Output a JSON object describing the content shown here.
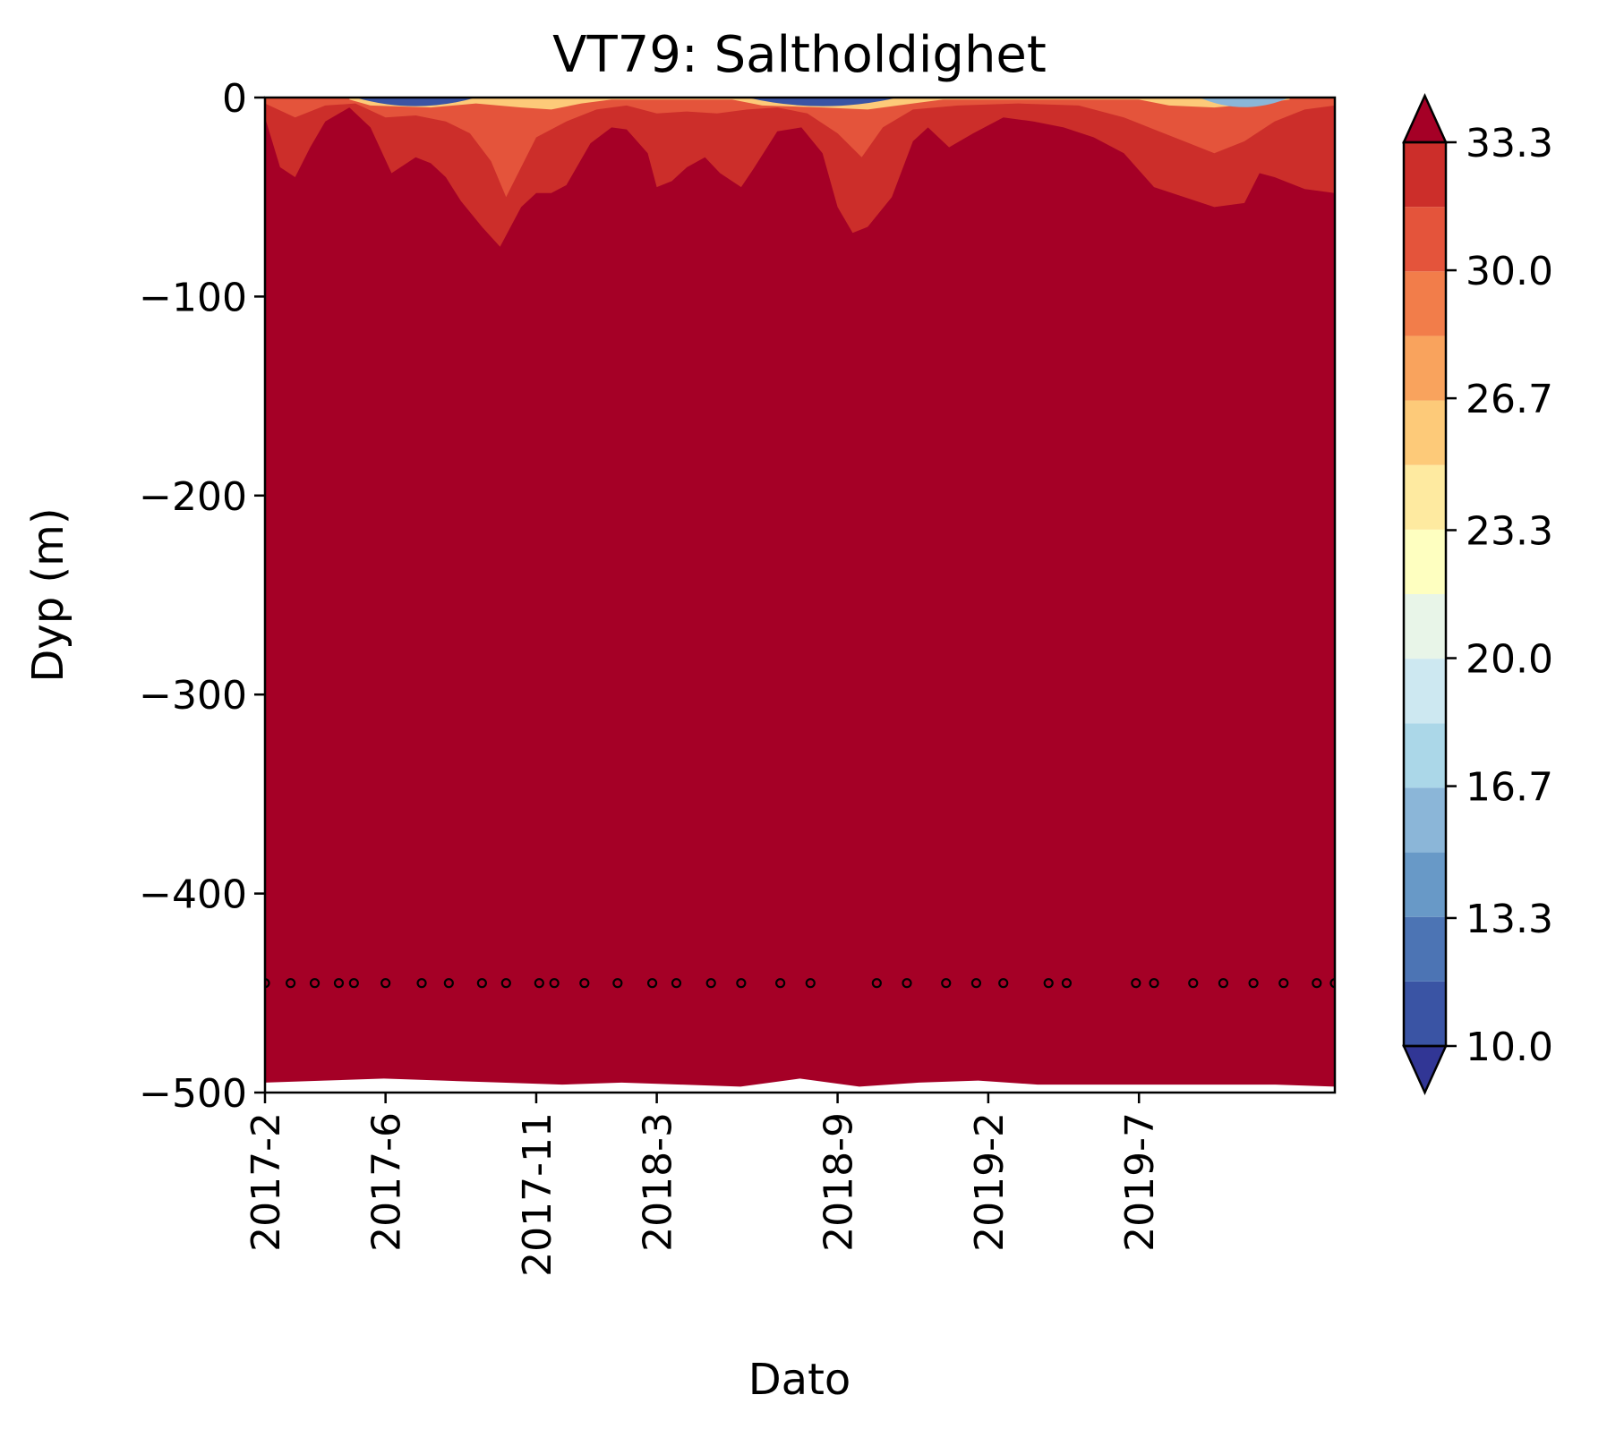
{
  "chart_data": {
    "type": "heatmap",
    "subtype": "filled-contour depth-time section",
    "title": "VT79: Saltholdighet",
    "xlabel": "Dato",
    "ylabel": "Dyp (m)",
    "x_tick_labels": [
      "2017-2",
      "2017-6",
      "2017-11",
      "2018-3",
      "2018-9",
      "2019-2",
      "2019-7"
    ],
    "x_tick_values_months": [
      0,
      4,
      9,
      13,
      19,
      24,
      29
    ],
    "x_range_months": [
      0,
      35.5
    ],
    "y_ticks": [
      0,
      -100,
      -200,
      -300,
      -400,
      -500
    ],
    "y_tick_labels": [
      "0",
      "−100",
      "−200",
      "−300",
      "−400",
      "−500"
    ],
    "ylim": [
      -500,
      0
    ],
    "colorbar": {
      "min": 10.0,
      "max": 33.3,
      "levels": 15,
      "tick_labels": [
        "10.0",
        "13.3",
        "16.7",
        "20.0",
        "23.3",
        "26.7",
        "30.0",
        "33.3"
      ],
      "tick_values": [
        10.0,
        13.3,
        16.7,
        20.0,
        23.3,
        26.7,
        30.0,
        33.3
      ],
      "extend": "both",
      "colors": [
        "#313695",
        "#3a54a4",
        "#4c74b4",
        "#6899c7",
        "#8bb6d8",
        "#abd7e8",
        "#cde8f1",
        "#e8f5e8",
        "#feffc0",
        "#feeaa0",
        "#fdca79",
        "#f9a35d",
        "#f27d4a",
        "#e4543b",
        "#cc2e2a",
        "#a50026"
      ]
    },
    "bottom_depth_m": [
      -495,
      -494,
      -493,
      -494,
      -495,
      -496,
      -495,
      -496,
      -497,
      -493,
      -497,
      -495,
      -494,
      -496,
      -496,
      -496,
      -496,
      -496,
      -497
    ],
    "contour_depths_m": {
      "salinity_below_33_3": [
        [
          0,
          -10
        ],
        [
          0.5,
          -35
        ],
        [
          1.0,
          -40
        ],
        [
          1.5,
          -25
        ],
        [
          2.0,
          -12
        ],
        [
          2.8,
          -5
        ],
        [
          3.5,
          -15
        ],
        [
          4.2,
          -38
        ],
        [
          5.0,
          -30
        ],
        [
          5.5,
          -33
        ],
        [
          6.0,
          -40
        ],
        [
          6.5,
          -52
        ],
        [
          7.2,
          -65
        ],
        [
          7.8,
          -75
        ],
        [
          8.5,
          -55
        ],
        [
          9.0,
          -48
        ],
        [
          9.5,
          -48
        ],
        [
          10.0,
          -44
        ],
        [
          10.8,
          -23
        ],
        [
          11.5,
          -15
        ],
        [
          12.0,
          -16
        ],
        [
          12.7,
          -28
        ],
        [
          13.0,
          -45
        ],
        [
          13.5,
          -42
        ],
        [
          14.0,
          -35
        ],
        [
          14.6,
          -30
        ],
        [
          15.1,
          -38
        ],
        [
          15.8,
          -45
        ],
        [
          16.2,
          -36
        ],
        [
          17.0,
          -17
        ],
        [
          17.8,
          -15
        ],
        [
          18.5,
          -28
        ],
        [
          19.0,
          -55
        ],
        [
          19.5,
          -68
        ],
        [
          20.0,
          -65
        ],
        [
          20.8,
          -50
        ],
        [
          21.5,
          -22
        ],
        [
          22.0,
          -15
        ],
        [
          22.7,
          -25
        ],
        [
          23.5,
          -18
        ],
        [
          24.5,
          -10
        ],
        [
          25.5,
          -12
        ],
        [
          26.5,
          -15
        ],
        [
          27.5,
          -20
        ],
        [
          28.5,
          -28
        ],
        [
          29.5,
          -45
        ],
        [
          30.5,
          -50
        ],
        [
          31.5,
          -55
        ],
        [
          32.5,
          -53
        ],
        [
          33.0,
          -38
        ],
        [
          33.5,
          -40
        ],
        [
          34.5,
          -46
        ],
        [
          35.5,
          -48
        ]
      ],
      "salinity_below_31_7": [
        [
          0,
          -3
        ],
        [
          1.0,
          -10
        ],
        [
          2.0,
          -4
        ],
        [
          3.0,
          -3
        ],
        [
          4.0,
          -10
        ],
        [
          5.0,
          -9
        ],
        [
          6.0,
          -12
        ],
        [
          6.8,
          -18
        ],
        [
          7.5,
          -32
        ],
        [
          8.0,
          -50
        ],
        [
          8.5,
          -35
        ],
        [
          9.0,
          -20
        ],
        [
          10.0,
          -12
        ],
        [
          11.0,
          -6
        ],
        [
          12.0,
          -4
        ],
        [
          13.0,
          -8
        ],
        [
          14.0,
          -7
        ],
        [
          15.0,
          -8
        ],
        [
          16.0,
          -6
        ],
        [
          17.0,
          -5
        ],
        [
          18.0,
          -8
        ],
        [
          19.0,
          -18
        ],
        [
          19.8,
          -30
        ],
        [
          20.5,
          -15
        ],
        [
          21.5,
          -6
        ],
        [
          23.0,
          -4
        ],
        [
          25.0,
          -3
        ],
        [
          27.0,
          -4
        ],
        [
          28.5,
          -10
        ],
        [
          29.5,
          -16
        ],
        [
          30.5,
          -22
        ],
        [
          31.5,
          -28
        ],
        [
          32.5,
          -22
        ],
        [
          33.5,
          -12
        ],
        [
          34.5,
          -6
        ],
        [
          35.5,
          -4
        ]
      ],
      "salinity_below_25": [
        [
          2.8,
          -1
        ],
        [
          3.5,
          -4
        ],
        [
          5.5,
          -5
        ],
        [
          7.0,
          -3
        ],
        [
          8.5,
          -5
        ],
        [
          9.5,
          -6
        ],
        [
          10.5,
          -3
        ],
        [
          11.5,
          -1
        ],
        [
          15.5,
          -1
        ],
        [
          16.5,
          -4
        ],
        [
          18.5,
          -5
        ],
        [
          20.0,
          -6
        ],
        [
          21.5,
          -3
        ],
        [
          22.5,
          -1
        ],
        [
          29.0,
          -1
        ],
        [
          30.0,
          -4
        ],
        [
          31.5,
          -5
        ],
        [
          33.0,
          -3
        ],
        [
          34.0,
          -1
        ]
      ]
    },
    "sample_depth_m": -445,
    "sample_times_months": [
      0,
      0.85,
      1.65,
      2.45,
      2.95,
      4.0,
      5.2,
      6.1,
      7.2,
      8.0,
      9.1,
      9.6,
      10.6,
      11.7,
      12.85,
      13.65,
      14.8,
      15.8,
      17.1,
      18.1,
      20.3,
      21.3,
      22.6,
      23.6,
      24.5,
      26.0,
      26.6,
      28.9,
      29.5,
      30.8,
      31.8,
      32.8,
      33.8,
      34.9,
      35.5
    ]
  }
}
